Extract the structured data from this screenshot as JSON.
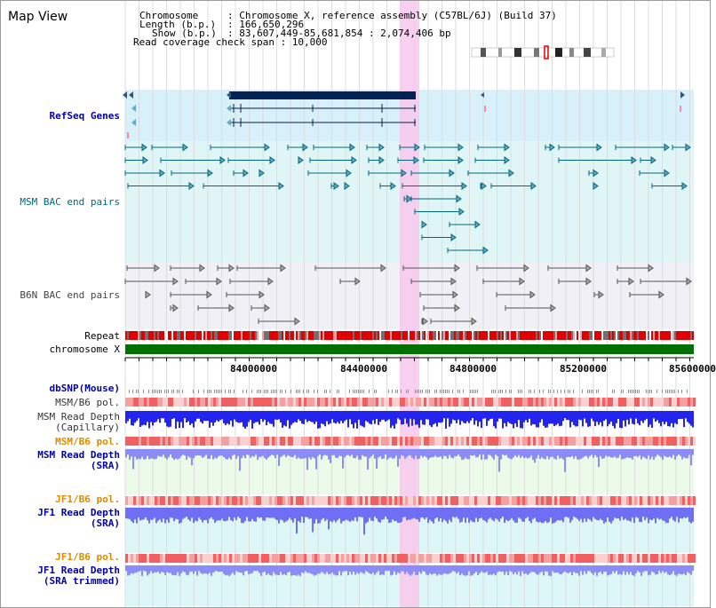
{
  "page_title": "Map View",
  "info": {
    "chromosome_key": "Chromosome",
    "chromosome_val": ": Chromosome X, reference assembly (C57BL/6J) (Build 37)",
    "length_key": "Length (b.p.)",
    "length_val": ": 166,650,296",
    "show_key": "Show (b.p.)",
    "show_val": ": 83,607,449-85,681,854 : 2,074,406 bp",
    "coverage": "Read coverage check span : 10,000"
  },
  "tracks": {
    "refseq": "RefSeq Genes",
    "msm_bac": "MSM BAC end pairs",
    "b6n_bac": "B6N BAC end pairs",
    "repeat": "Repeat",
    "chromosome": "chromosome X",
    "dbsnp": "dbSNP(Mouse)",
    "msm_b6_pol_1": "MSM/B6 pol.",
    "msm_depth_cap_1": "MSM Read Depth",
    "msm_depth_cap_2": "(Capillary)",
    "msm_b6_pol_2": "MSM/B6 pol.",
    "msm_depth_sra_1": "MSM Read Depth",
    "msm_depth_sra_2": "(SRA)",
    "jf1_b6_pol_1": "JF1/B6 pol.",
    "jf1_depth_sra_1": "JF1 Read Depth",
    "jf1_depth_sra_2": "(SRA)",
    "jf1_b6_pol_2": "JF1/B6 pol.",
    "jf1_depth_trim_1": "JF1 Read Depth",
    "jf1_depth_trim_2": "(SRA trimmed)"
  },
  "axis": {
    "ticks": [
      "84000000",
      "84400000",
      "84800000",
      "85200000",
      "85600000"
    ]
  },
  "colors": {
    "highlight": "#f8c8ec",
    "refseq_bg": "#d8f0fa",
    "msm_bg": "#e0f6f6",
    "b6n_bg": "#f0f0f6",
    "chromosome_bar": "#007000",
    "depth_blue": "#2020f0",
    "depth_light": "#8c8cf8",
    "pol_red": "#f07070"
  }
}
